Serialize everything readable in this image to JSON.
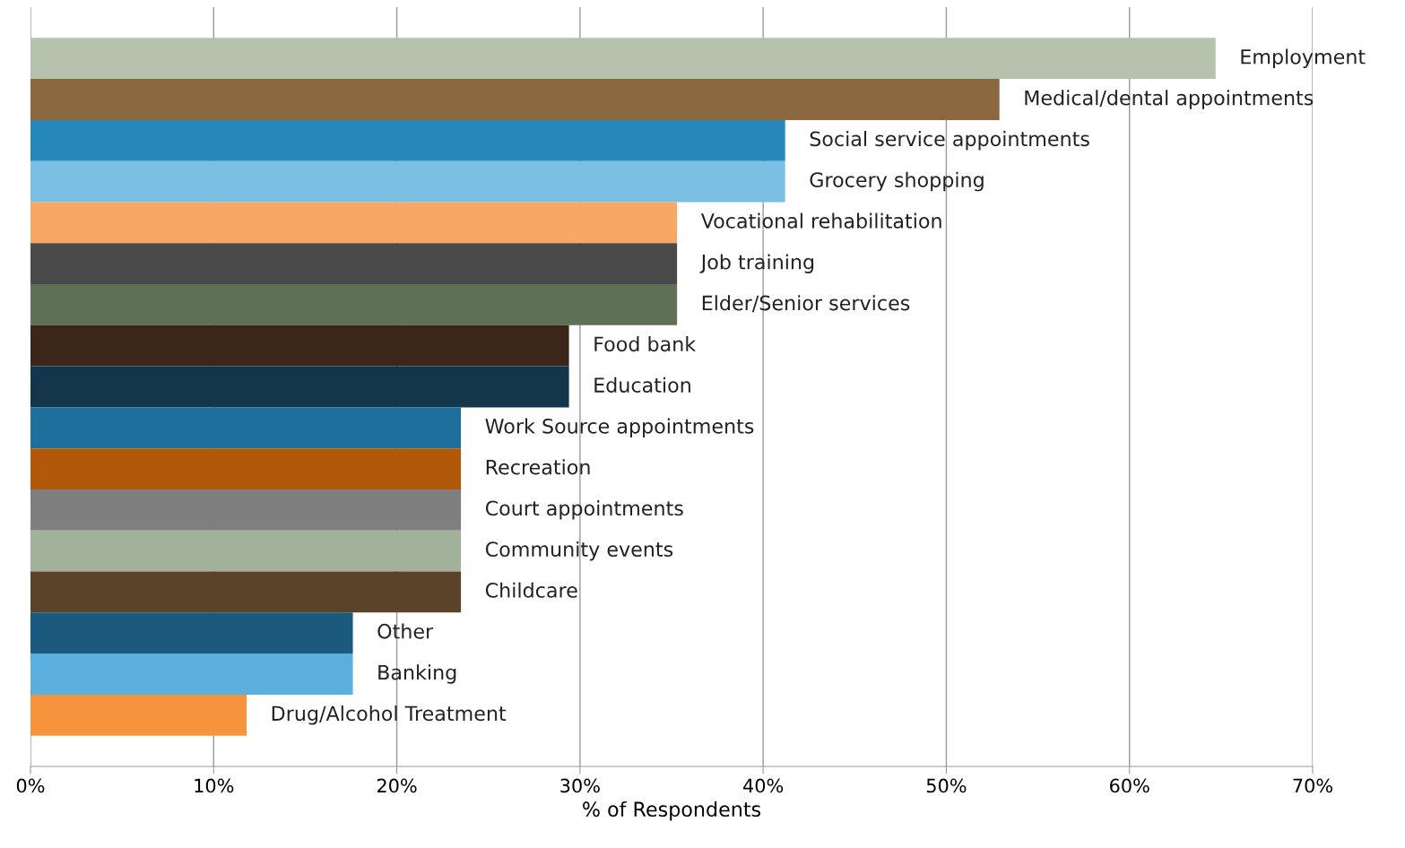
{
  "chart_data": {
    "type": "bar",
    "orientation": "horizontal",
    "xlabel": "% of Respondents",
    "categories": [
      "Employment",
      "Medical/dental appointments",
      "Social service appointments",
      "Grocery shopping",
      "Vocational rehabilitation",
      "Job training",
      "Elder/Senior services",
      "Food bank",
      "Education",
      "Work Source appointments",
      "Recreation",
      "Court appointments",
      "Community events",
      "Childcare",
      "Other",
      "Banking",
      "Drug/Alcohol Treatment"
    ],
    "values": [
      64.7,
      52.9,
      41.2,
      41.2,
      35.3,
      35.3,
      35.3,
      29.4,
      29.4,
      23.5,
      23.5,
      23.5,
      23.5,
      23.5,
      17.6,
      17.6,
      11.8
    ],
    "colors": [
      "#b5c2ae",
      "#8c6840",
      "#2687bb",
      "#7bbfe3",
      "#f6a864",
      "#4a4a4a",
      "#5f7155",
      "#3a271a",
      "#13364a",
      "#1f6f9c",
      "#b1580a",
      "#7f7f7f",
      "#a2b19a",
      "#5b432a",
      "#1b5a7d",
      "#5aafdd",
      "#f5943d"
    ],
    "xlim": [
      0,
      70
    ],
    "xticks": [
      {
        "value": 0,
        "label": "0%"
      },
      {
        "value": 10,
        "label": "10%"
      },
      {
        "value": 20,
        "label": "20%"
      },
      {
        "value": 30,
        "label": "30%"
      },
      {
        "value": 40,
        "label": "40%"
      },
      {
        "value": 50,
        "label": "50%"
      },
      {
        "value": 60,
        "label": "60%"
      },
      {
        "value": 70,
        "label": "70%"
      }
    ],
    "grid": "x",
    "tick_labels": "x"
  }
}
